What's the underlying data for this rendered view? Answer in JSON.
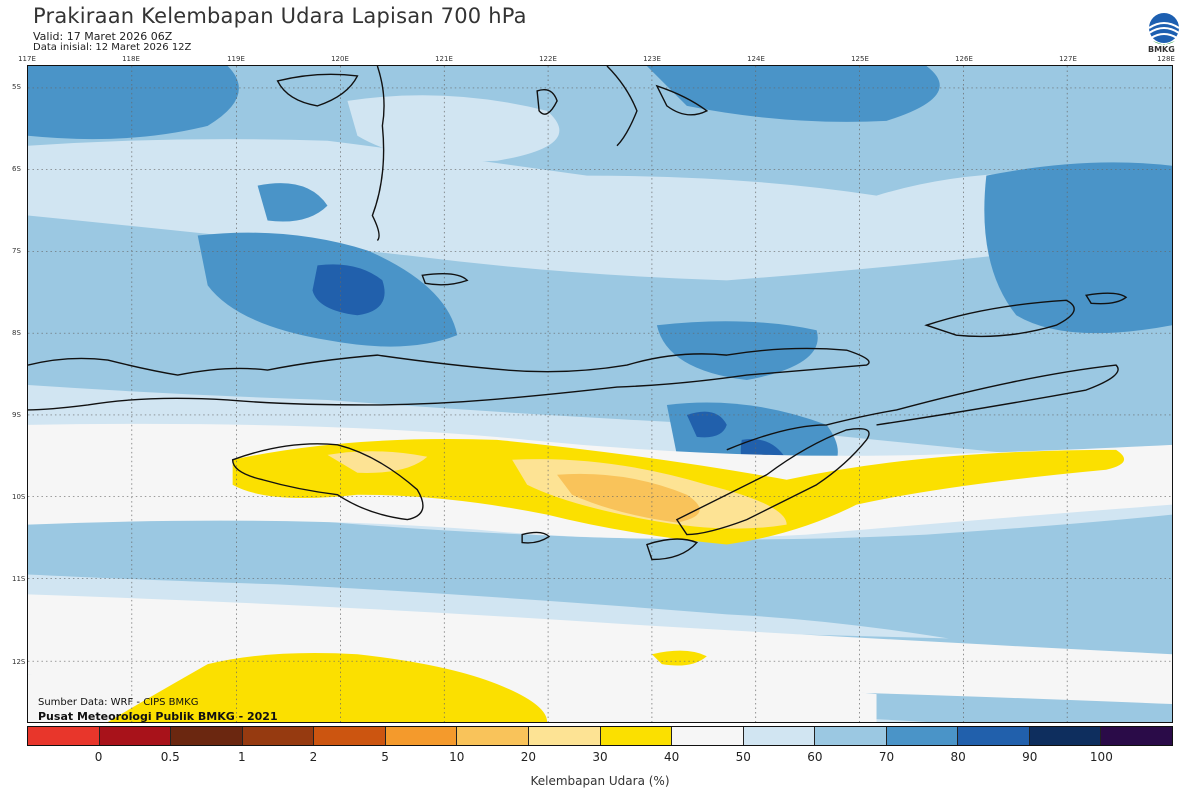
{
  "header": {
    "title": "Prakiraan Kelembapan Udara Lapisan 700 hPa",
    "valid": "Valid: 17 Maret 2026 06Z",
    "initial": "Data inisial: 12 Maret 2026 12Z"
  },
  "logo": {
    "text": "BMKG"
  },
  "axes": {
    "lon_labels": [
      "117E",
      "118E",
      "119E",
      "120E",
      "121E",
      "122E",
      "123E",
      "124E",
      "125E",
      "126E",
      "127E",
      "128E"
    ],
    "lat_labels": [
      "5S",
      "6S",
      "7S",
      "8S",
      "9S",
      "10S",
      "11S",
      "12S"
    ]
  },
  "footer": {
    "source": "Sumber Data: WRF - CIPS BMKG",
    "publisher": "Pusat Meteorologi Publik BMKG - 2021"
  },
  "colorbar": {
    "label": "Kelembapan Udara (%)",
    "ticks": [
      "0",
      "0.5",
      "1",
      "2",
      "5",
      "10",
      "20",
      "30",
      "40",
      "50",
      "60",
      "70",
      "80",
      "90",
      "100"
    ],
    "colors": [
      "#e8362b",
      "#a8121a",
      "#6b2710",
      "#963a10",
      "#cc5510",
      "#f49a2c",
      "#f9c35a",
      "#fde394",
      "#fbe000",
      "#f6f6f6",
      "#d1e5f2",
      "#9bc8e2",
      "#4a94c8",
      "#2160ac",
      "#0e2e5e",
      "#2a0b48"
    ]
  },
  "legend_scale": {
    "min": 0,
    "max": 100,
    "unit": "%"
  }
}
